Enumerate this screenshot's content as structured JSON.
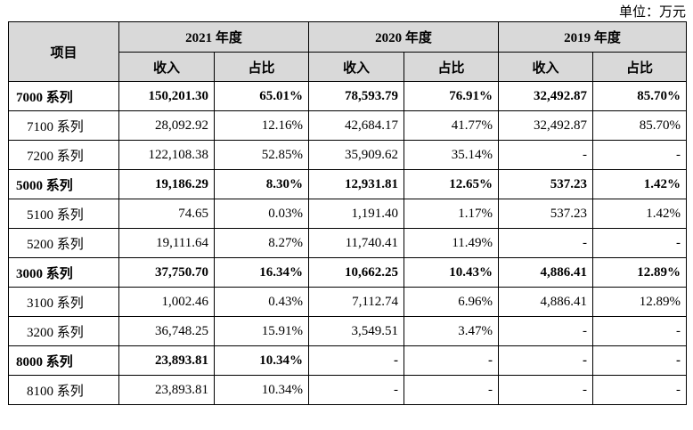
{
  "unit_label": "单位：万元",
  "header": {
    "item": "项目",
    "years": [
      "2021 年度",
      "2020 年度",
      "2019 年度"
    ],
    "revenue": "收入",
    "ratio": "占比"
  },
  "rows": [
    {
      "name": "7000 系列",
      "bold": true,
      "v": [
        "150,201.30",
        "65.01%",
        "78,593.79",
        "76.91%",
        "32,492.87",
        "85.70%"
      ]
    },
    {
      "name": "7100 系列",
      "bold": false,
      "v": [
        "28,092.92",
        "12.16%",
        "42,684.17",
        "41.77%",
        "32,492.87",
        "85.70%"
      ]
    },
    {
      "name": "7200 系列",
      "bold": false,
      "v": [
        "122,108.38",
        "52.85%",
        "35,909.62",
        "35.14%",
        "-",
        "-"
      ]
    },
    {
      "name": "5000 系列",
      "bold": true,
      "v": [
        "19,186.29",
        "8.30%",
        "12,931.81",
        "12.65%",
        "537.23",
        "1.42%"
      ]
    },
    {
      "name": "5100 系列",
      "bold": false,
      "v": [
        "74.65",
        "0.03%",
        "1,191.40",
        "1.17%",
        "537.23",
        "1.42%"
      ]
    },
    {
      "name": "5200 系列",
      "bold": false,
      "v": [
        "19,111.64",
        "8.27%",
        "11,740.41",
        "11.49%",
        "-",
        "-"
      ]
    },
    {
      "name": "3000 系列",
      "bold": true,
      "v": [
        "37,750.70",
        "16.34%",
        "10,662.25",
        "10.43%",
        "4,886.41",
        "12.89%"
      ]
    },
    {
      "name": "3100 系列",
      "bold": false,
      "v": [
        "1,002.46",
        "0.43%",
        "7,112.74",
        "6.96%",
        "4,886.41",
        "12.89%"
      ]
    },
    {
      "name": "3200 系列",
      "bold": false,
      "v": [
        "36,748.25",
        "15.91%",
        "3,549.51",
        "3.47%",
        "-",
        "-"
      ]
    },
    {
      "name": "8000 系列",
      "bold": true,
      "v": [
        "23,893.81",
        "10.34%",
        "-",
        "-",
        "-",
        "-"
      ]
    },
    {
      "name": "8100 系列",
      "bold": false,
      "v": [
        "23,893.81",
        "10.34%",
        "-",
        "-",
        "-",
        "-"
      ]
    }
  ]
}
